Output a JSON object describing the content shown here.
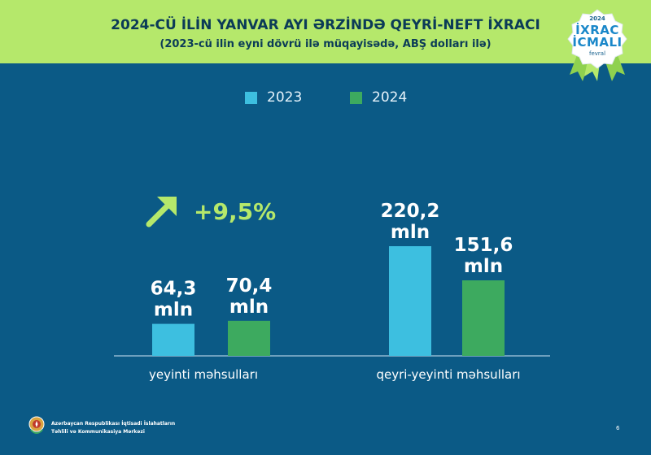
{
  "header": {
    "title": "2024-CÜ İLİN YANVAR AYI ƏRZİNDƏ QEYRİ-NEFT İXRACI",
    "subtitle": "(2023-cü ilin eyni dövrü ilə müqayisədə, ABŞ dolları ilə)"
  },
  "badge": {
    "year": "2024",
    "line1": "İXRAC",
    "line2": "İCMALI",
    "month": "fevral"
  },
  "growth": {
    "text": "+9,5%",
    "icon": "arrow-up-right-icon",
    "color": "#b5e86b"
  },
  "footer": {
    "org_line1": "Azərbaycan Respublikası İqtisadi İslahatların",
    "org_line2": "Təhlili və Kommunikasiya Mərkəzi",
    "page_number": "6"
  },
  "colors": {
    "background": "#0b5a86",
    "header": "#b5e86b",
    "series_2023": "#3dbfe0",
    "series_2024": "#3daa5f"
  },
  "chart_data": {
    "type": "bar",
    "title": "2024-CÜ İLİN YANVAR AYI ƏRZİNDƏ QEYRİ-NEFT İXRACI",
    "subtitle": "(2023-cü ilin eyni dövrü ilə müqayisədə, ABŞ dolları ilə)",
    "categories": [
      "yeyinti məhsulları",
      "qeyri-yeyinti məhsulları"
    ],
    "series": [
      {
        "name": "2023",
        "values": [
          64.3,
          220.2
        ],
        "labels": [
          "64,3",
          "220,2"
        ],
        "color": "#3dbfe0"
      },
      {
        "name": "2024",
        "values": [
          70.4,
          151.6
        ],
        "labels": [
          "70,4",
          "151,6"
        ],
        "color": "#3daa5f"
      }
    ],
    "unit": "mln",
    "legend": "top-center",
    "grid": false,
    "ylim": [
      0,
      220.2
    ]
  }
}
